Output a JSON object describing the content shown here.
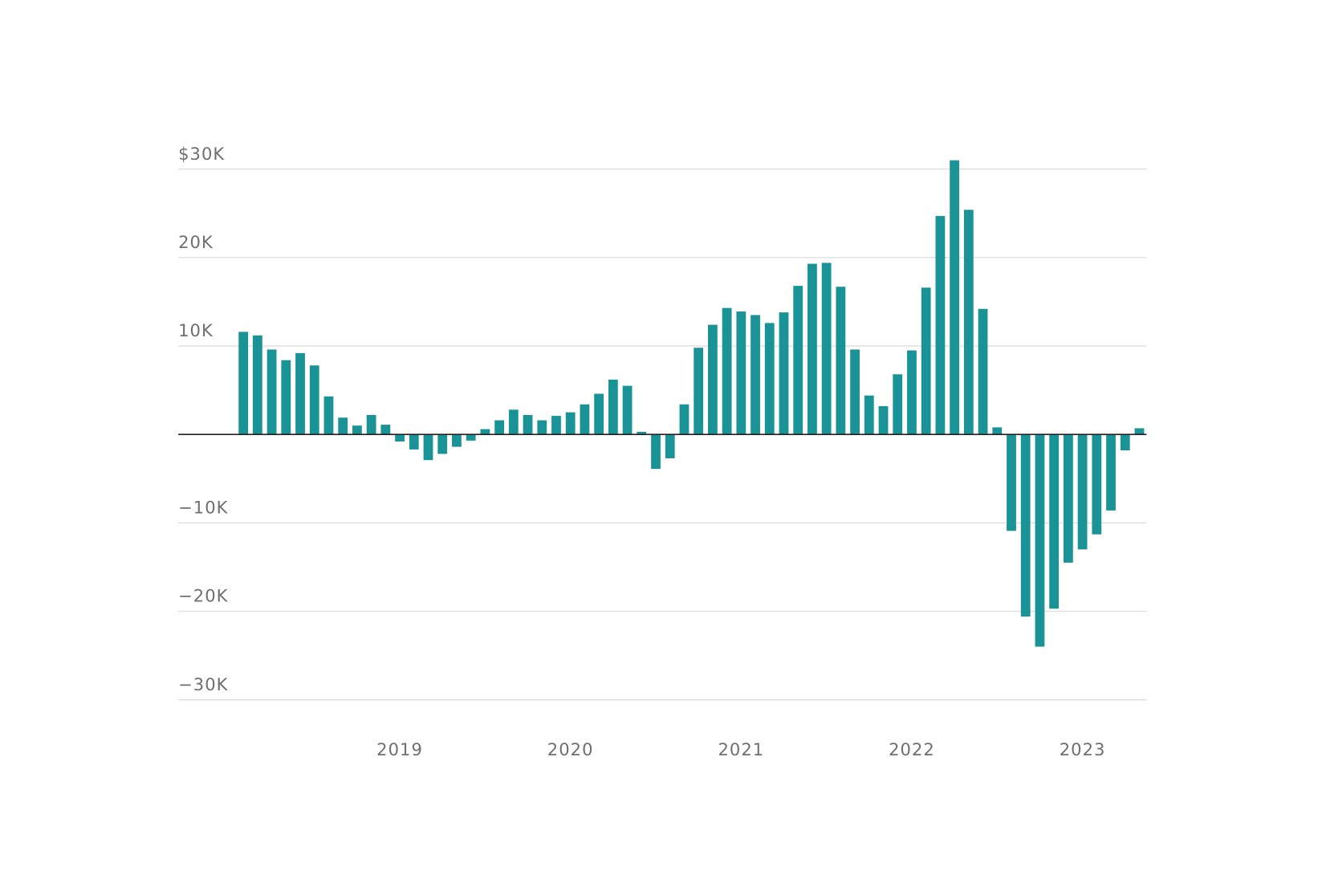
{
  "chart_data": {
    "type": "bar",
    "color": "#1a9396",
    "grid": true,
    "categories": [
      null,
      null,
      null,
      null,
      null,
      null,
      null,
      null,
      null,
      null,
      null,
      "2019",
      null,
      null,
      null,
      null,
      null,
      null,
      null,
      null,
      null,
      null,
      null,
      "2020",
      null,
      null,
      null,
      null,
      null,
      null,
      null,
      null,
      null,
      null,
      null,
      "2021",
      null,
      null,
      null,
      null,
      null,
      null,
      null,
      null,
      null,
      null,
      null,
      "2022",
      null,
      null,
      null,
      null,
      null,
      null,
      null,
      null,
      null,
      null,
      null,
      "2023",
      null,
      null,
      null,
      null
    ],
    "values": [
      11600,
      11200,
      9600,
      8400,
      9200,
      7800,
      4300,
      1900,
      1000,
      2200,
      1100,
      -800,
      -1700,
      -2900,
      -2200,
      -1400,
      -700,
      600,
      1600,
      2800,
      2200,
      1600,
      2100,
      2500,
      3400,
      4600,
      6200,
      5500,
      300,
      -3900,
      -2700,
      3400,
      9800,
      12400,
      14300,
      13900,
      13500,
      12600,
      13800,
      16800,
      19300,
      19400,
      16700,
      9600,
      4400,
      3200,
      6800,
      9500,
      16600,
      24700,
      31000,
      25400,
      14200,
      800,
      -10900,
      -20600,
      -24000,
      -19700,
      -14500,
      -13000,
      -11300,
      -8600,
      -1800,
      700
    ],
    "ylim": [
      -30000,
      30000
    ],
    "yticks": [
      {
        "value": 30000,
        "label": "$30K"
      },
      {
        "value": 20000,
        "label": "20K"
      },
      {
        "value": 10000,
        "label": "10K"
      },
      {
        "value": -10000,
        "label": "−10K"
      },
      {
        "value": -20000,
        "label": "−20K"
      },
      {
        "value": -30000,
        "label": "−30K"
      }
    ]
  }
}
